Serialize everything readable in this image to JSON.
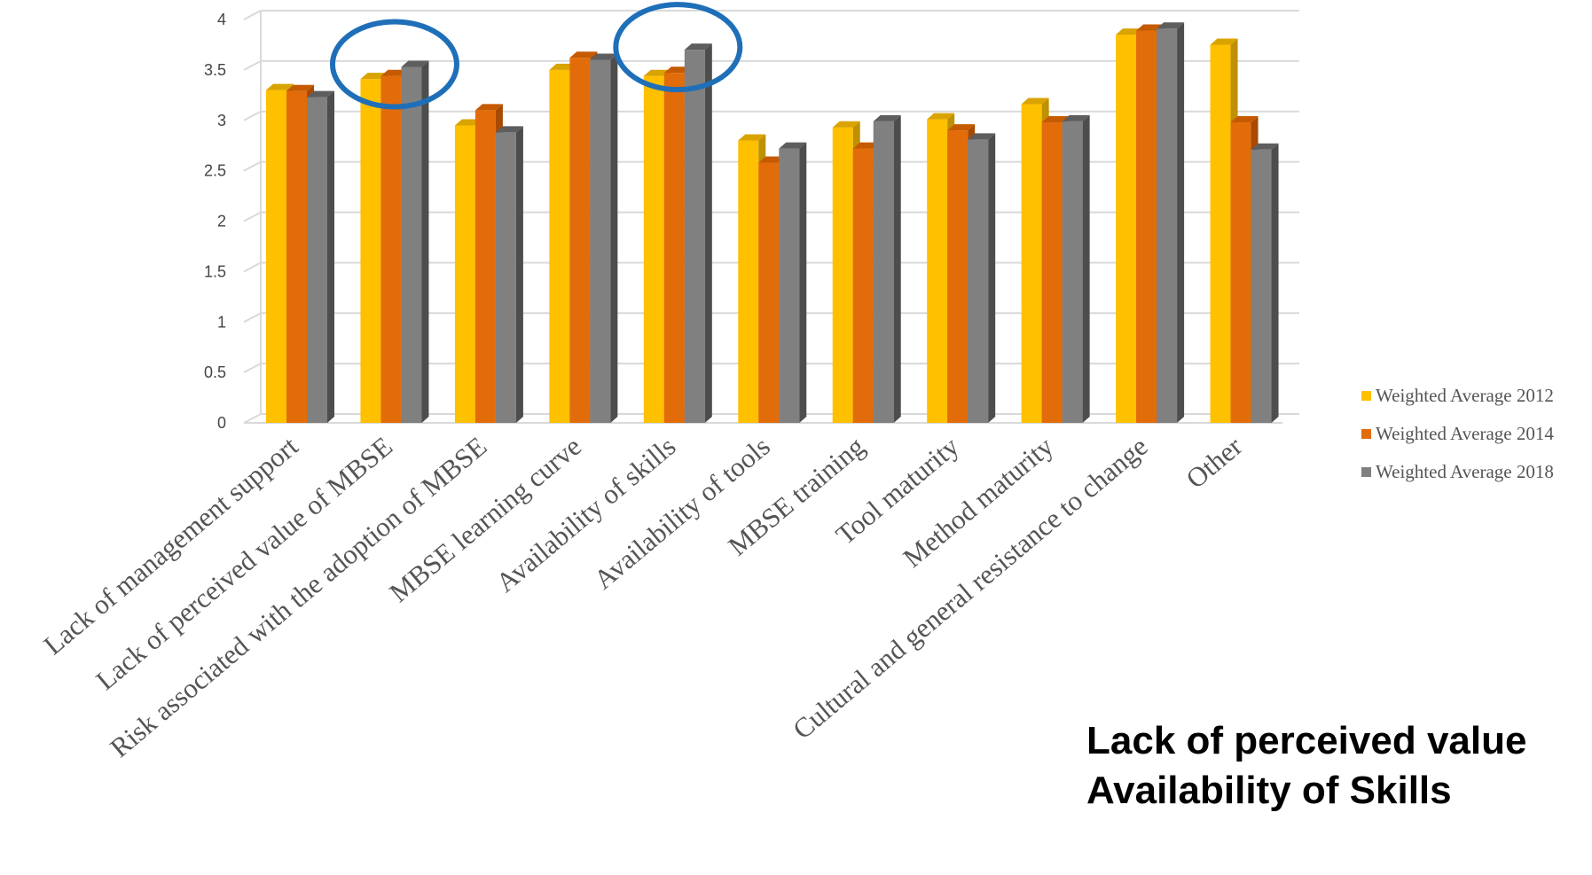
{
  "chart_data": {
    "type": "bar",
    "title": "",
    "xlabel": "",
    "ylabel": "",
    "ylim": [
      0,
      4
    ],
    "yticks": [
      "0",
      "0.5",
      "1",
      "1.5",
      "2",
      "2.5",
      "3",
      "3.5",
      "4"
    ],
    "grid": true,
    "style": "3d",
    "legend_position": "right",
    "categories": [
      "Lack of management support",
      "Lack of perceived value of MBSE",
      "Risk associated with the adoption of MBSE",
      "MBSE learning curve",
      "Availability of skills",
      "Availability of tools",
      "MBSE training",
      "Tool maturity",
      "Method maturity",
      "Cultural and general resistance to change",
      "Other"
    ],
    "series": [
      {
        "name": "Weighted Average 2012",
        "color": "#FFC000",
        "top_color": "#D9A300",
        "side_color": "#BF9000",
        "values": [
          3.3,
          3.41,
          2.95,
          3.5,
          3.44,
          2.8,
          2.93,
          3.01,
          3.16,
          3.85,
          3.75
        ]
      },
      {
        "name": "Weighted Average 2014",
        "color": "#E36C0A",
        "top_color": "#C55A00",
        "side_color": "#A84A00",
        "values": [
          3.29,
          3.44,
          3.1,
          3.62,
          3.47,
          2.58,
          2.72,
          2.9,
          2.98,
          3.89,
          2.98
        ]
      },
      {
        "name": "Weighted Average 2018",
        "color": "#808080",
        "top_color": "#5E5E5E",
        "side_color": "#4D4D4D",
        "values": [
          3.23,
          3.53,
          2.88,
          3.6,
          3.7,
          2.72,
          2.99,
          2.81,
          2.99,
          3.91,
          2.71
        ]
      }
    ],
    "annotations": [
      {
        "type": "ellipse",
        "category": "Lack of perceived value of MBSE",
        "color": "#1F6FB8"
      },
      {
        "type": "ellipse",
        "category": "Availability of skills",
        "color": "#1F6FB8"
      }
    ]
  },
  "note": {
    "line1": "Lack of perceived value",
    "line2": "Availability of Skills"
  }
}
